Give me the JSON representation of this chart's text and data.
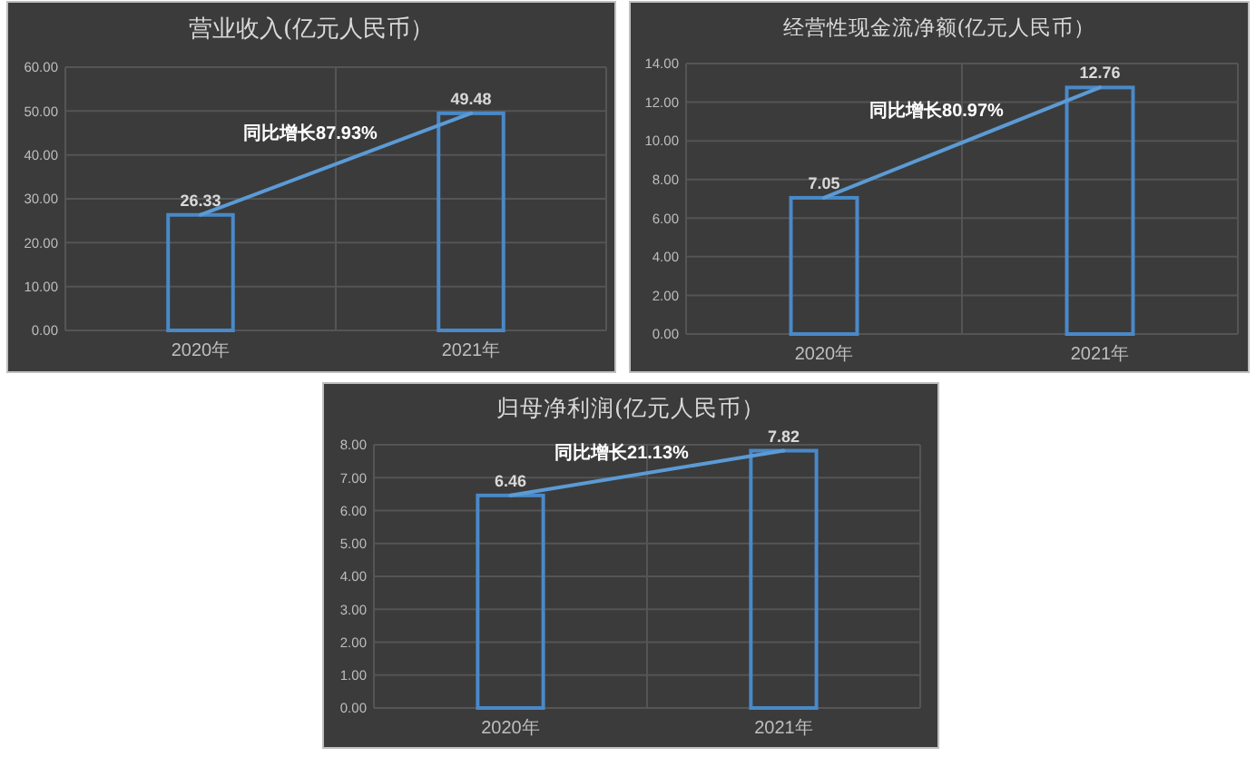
{
  "chart_data": [
    {
      "type": "bar",
      "title": "营业收入(亿元人民币）",
      "categories": [
        "2020年",
        "2021年"
      ],
      "series": [
        {
          "color": "#4a89c8",
          "values": [
            26.33,
            49.48
          ],
          "value_labels": [
            "26.33",
            "49.48"
          ]
        },
        {
          "type": "line",
          "color": "#5b9bd5",
          "values": [
            26.33,
            49.48
          ]
        }
      ],
      "ylim": [
        0,
        60
      ],
      "yticks": [
        {
          "value": 0,
          "label": "0.00"
        },
        {
          "value": 10,
          "label": "10.00"
        },
        {
          "value": 20,
          "label": "20.00"
        },
        {
          "value": 30,
          "label": "30.00"
        },
        {
          "value": 40,
          "label": "40.00"
        },
        {
          "value": 50,
          "label": "50.00"
        },
        {
          "value": 60,
          "label": "60.00"
        }
      ],
      "grid": true,
      "annotations": [
        "同比增长87.93%"
      ]
    },
    {
      "type": "bar",
      "title": "经营性现金流净额(亿元人民币）",
      "categories": [
        "2020年",
        "2021年"
      ],
      "series": [
        {
          "color": "#4a89c8",
          "values": [
            7.05,
            12.76
          ],
          "value_labels": [
            "7.05",
            "12.76"
          ]
        },
        {
          "type": "line",
          "color": "#5b9bd5",
          "values": [
            7.05,
            12.76
          ]
        }
      ],
      "ylim": [
        0,
        14
      ],
      "yticks": [
        {
          "value": 0,
          "label": "0.00"
        },
        {
          "value": 2,
          "label": "2.00"
        },
        {
          "value": 4,
          "label": "4.00"
        },
        {
          "value": 6,
          "label": "6.00"
        },
        {
          "value": 8,
          "label": "8.00"
        },
        {
          "value": 10,
          "label": "10.00"
        },
        {
          "value": 12,
          "label": "12.00"
        },
        {
          "value": 14,
          "label": "14.00"
        }
      ],
      "grid": true,
      "annotations": [
        "同比增长80.97%"
      ]
    },
    {
      "type": "bar",
      "title": "归母净利润(亿元人民币）",
      "categories": [
        "2020年",
        "2021年"
      ],
      "series": [
        {
          "color": "#4a89c8",
          "values": [
            6.46,
            7.82
          ],
          "value_labels": [
            "6.46",
            "7.82"
          ]
        },
        {
          "type": "line",
          "color": "#5b9bd5",
          "values": [
            6.46,
            7.82
          ]
        }
      ],
      "ylim": [
        0,
        8
      ],
      "yticks": [
        {
          "value": 0,
          "label": "0.00"
        },
        {
          "value": 1,
          "label": "1.00"
        },
        {
          "value": 2,
          "label": "2.00"
        },
        {
          "value": 3,
          "label": "3.00"
        },
        {
          "value": 4,
          "label": "4.00"
        },
        {
          "value": 5,
          "label": "5.00"
        },
        {
          "value": 6,
          "label": "6.00"
        },
        {
          "value": 7,
          "label": "7.00"
        },
        {
          "value": 8,
          "label": "8.00"
        }
      ],
      "grid": true,
      "annotations": [
        "同比增长21.13%"
      ]
    }
  ]
}
